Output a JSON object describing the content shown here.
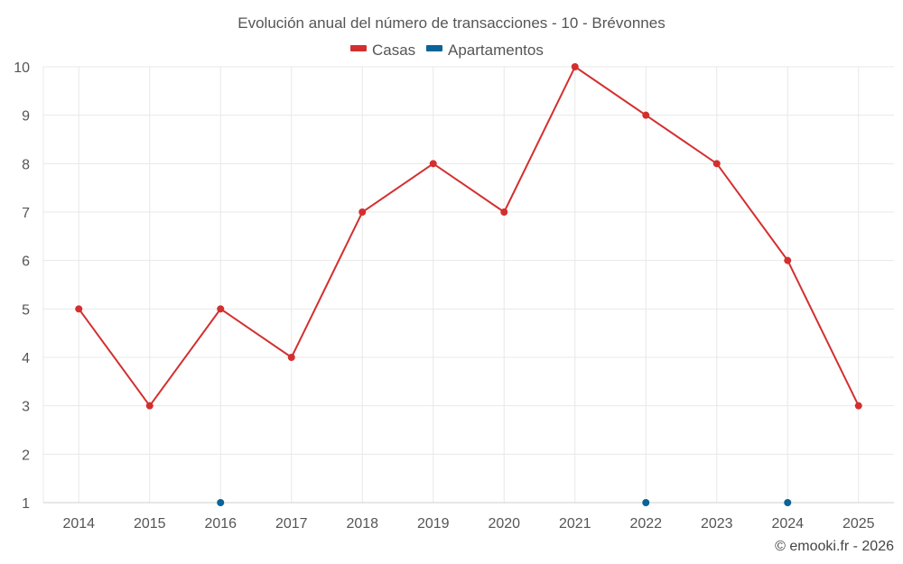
{
  "chart_data": {
    "type": "line",
    "title": "Evolución anual del número de transacciones - 10 - Brévonnes",
    "x": [
      2014,
      2015,
      2016,
      2017,
      2018,
      2019,
      2020,
      2021,
      2022,
      2023,
      2024,
      2025
    ],
    "x_tick_labels": [
      "2014",
      "2015",
      "2016",
      "2017",
      "2018",
      "2019",
      "2020",
      "2021",
      "2022",
      "2023",
      "2024",
      "2025"
    ],
    "y_tick_labels": [
      "1",
      "2",
      "3",
      "4",
      "5",
      "6",
      "7",
      "8",
      "9",
      "10"
    ],
    "ylim": [
      1,
      10
    ],
    "grid": true,
    "legend_position": "top-center",
    "xlabel": "",
    "ylabel": "",
    "series": [
      {
        "name": "Casas",
        "color": "#d32f2f",
        "values": [
          5,
          3,
          5,
          4,
          7,
          8,
          7,
          10,
          9,
          8,
          6,
          3
        ]
      },
      {
        "name": "Apartamentos",
        "color": "#0a6496",
        "values": [
          null,
          null,
          1,
          null,
          null,
          null,
          null,
          null,
          1,
          null,
          1,
          null
        ]
      }
    ],
    "credit": "© emooki.fr - 2026"
  }
}
